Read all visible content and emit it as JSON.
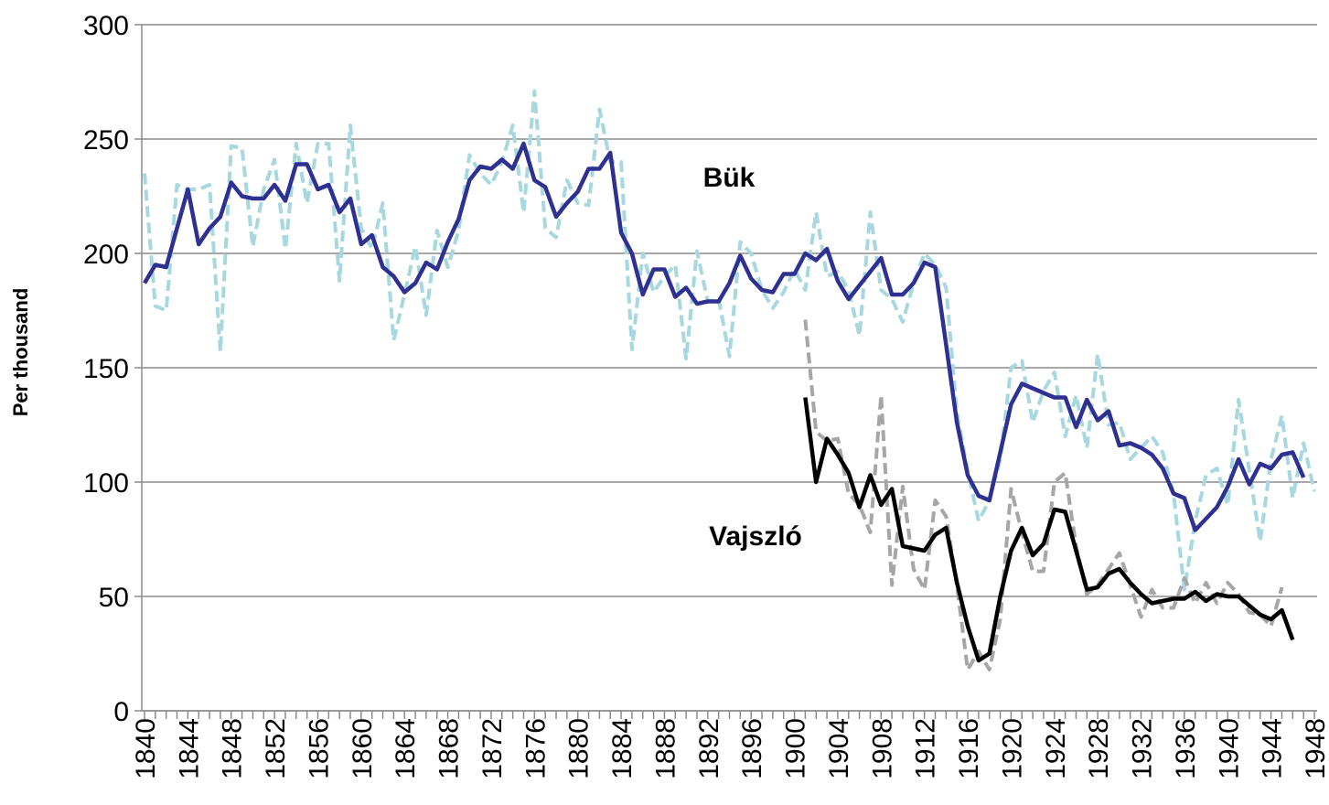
{
  "chart_data": {
    "type": "line",
    "y_label": "Per thousand",
    "annotations": [
      "Bük",
      "Vajszló"
    ],
    "x": [
      1840,
      1841,
      1842,
      1843,
      1844,
      1845,
      1846,
      1847,
      1848,
      1849,
      1850,
      1851,
      1852,
      1853,
      1854,
      1855,
      1856,
      1857,
      1858,
      1859,
      1860,
      1861,
      1862,
      1863,
      1864,
      1865,
      1866,
      1867,
      1868,
      1869,
      1870,
      1871,
      1872,
      1873,
      1874,
      1875,
      1876,
      1877,
      1878,
      1879,
      1880,
      1881,
      1882,
      1883,
      1884,
      1885,
      1886,
      1887,
      1888,
      1889,
      1890,
      1891,
      1892,
      1893,
      1894,
      1895,
      1896,
      1897,
      1898,
      1899,
      1900,
      1901,
      1902,
      1903,
      1904,
      1905,
      1906,
      1907,
      1908,
      1909,
      1910,
      1911,
      1912,
      1913,
      1914,
      1915,
      1916,
      1917,
      1918,
      1919,
      1920,
      1921,
      1922,
      1923,
      1924,
      1925,
      1926,
      1927,
      1928,
      1929,
      1930,
      1931,
      1932,
      1933,
      1934,
      1935,
      1936,
      1937,
      1938,
      1939,
      1940,
      1941,
      1942,
      1943,
      1944,
      1945,
      1946,
      1947,
      1948
    ],
    "xlim": [
      1840,
      1948
    ],
    "xticks": [
      1840,
      1844,
      1848,
      1852,
      1856,
      1860,
      1864,
      1868,
      1872,
      1876,
      1880,
      1884,
      1888,
      1892,
      1896,
      1900,
      1904,
      1908,
      1912,
      1916,
      1920,
      1924,
      1928,
      1932,
      1936,
      1940,
      1944,
      1948
    ],
    "ylim": [
      0,
      300
    ],
    "yticks": [
      0,
      50,
      100,
      150,
      200,
      250,
      300
    ],
    "grid": true,
    "series": [
      {
        "color": "#a8d8df",
        "dashed": true,
        "values": [
          235,
          177,
          175,
          230,
          228,
          228,
          230,
          157,
          247,
          246,
          203,
          228,
          241,
          202,
          248,
          222,
          248,
          248,
          188,
          256,
          211,
          202,
          222,
          162,
          182,
          203,
          173,
          210,
          194,
          210,
          243,
          235,
          230,
          240,
          256,
          218,
          271,
          211,
          207,
          232,
          222,
          221,
          263,
          240,
          240,
          158,
          200,
          183,
          190,
          195,
          154,
          201,
          179,
          180,
          155,
          205,
          200,
          184,
          176,
          183,
          193,
          184,
          218,
          190,
          192,
          184,
          164,
          218,
          184,
          180,
          170,
          187,
          200,
          195,
          185,
          130,
          105,
          83,
          92,
          110,
          150,
          153,
          126,
          140,
          148,
          120,
          138,
          115,
          156,
          125,
          126,
          110,
          115,
          120,
          113,
          95,
          53,
          83,
          103,
          106,
          90,
          136,
          105,
          74,
          110,
          129,
          93,
          117,
          96
        ]
      },
      {
        "color": "#a6a6a6",
        "dashed": true,
        "values": [
          null,
          null,
          null,
          null,
          null,
          null,
          null,
          null,
          null,
          null,
          null,
          null,
          null,
          null,
          null,
          null,
          null,
          null,
          null,
          null,
          null,
          null,
          null,
          null,
          null,
          null,
          null,
          null,
          null,
          null,
          null,
          null,
          null,
          null,
          null,
          null,
          null,
          null,
          null,
          null,
          null,
          null,
          null,
          null,
          null,
          null,
          null,
          null,
          null,
          null,
          null,
          null,
          null,
          null,
          null,
          null,
          null,
          null,
          null,
          null,
          null,
          171,
          122,
          118,
          119,
          95,
          90,
          78,
          138,
          55,
          98,
          62,
          53,
          92,
          85,
          55,
          18,
          26,
          18,
          40,
          97,
          78,
          61,
          61,
          100,
          104,
          72,
          51,
          55,
          62,
          69,
          55,
          41,
          53,
          45,
          45,
          58,
          47,
          56,
          47,
          56,
          51,
          43,
          42,
          37,
          54,
          null,
          null,
          null
        ]
      },
      {
        "color": "#2e3192",
        "dashed": false,
        "values": [
          187,
          195,
          194,
          211,
          228,
          204,
          211,
          216,
          231,
          225,
          224,
          224,
          230,
          223,
          239,
          239,
          228,
          230,
          218,
          224,
          204,
          208,
          194,
          190,
          183,
          187,
          196,
          193,
          205,
          215,
          232,
          238,
          237,
          241,
          237,
          248,
          232,
          229,
          216,
          222,
          227,
          237,
          237,
          244,
          209,
          200,
          182,
          193,
          193,
          181,
          185,
          178,
          179,
          179,
          187,
          199,
          189,
          184,
          183,
          191,
          191,
          200,
          197,
          202,
          188,
          180,
          186,
          192,
          198,
          182,
          182,
          187,
          196,
          194,
          160,
          126,
          103,
          94,
          92,
          113,
          134,
          143,
          141,
          139,
          137,
          137,
          124,
          136,
          127,
          131,
          116,
          117,
          115,
          112,
          106,
          95,
          93,
          79,
          84,
          89,
          98,
          110,
          99,
          108,
          106,
          112,
          113,
          102,
          null
        ]
      },
      {
        "color": "#000000",
        "dashed": false,
        "values": [
          null,
          null,
          null,
          null,
          null,
          null,
          null,
          null,
          null,
          null,
          null,
          null,
          null,
          null,
          null,
          null,
          null,
          null,
          null,
          null,
          null,
          null,
          null,
          null,
          null,
          null,
          null,
          null,
          null,
          null,
          null,
          null,
          null,
          null,
          null,
          null,
          null,
          null,
          null,
          null,
          null,
          null,
          null,
          null,
          null,
          null,
          null,
          null,
          null,
          null,
          null,
          null,
          null,
          null,
          null,
          null,
          null,
          null,
          null,
          null,
          null,
          137,
          100,
          119,
          112,
          104,
          89,
          103,
          90,
          97,
          72,
          71,
          70,
          77,
          80,
          56,
          37,
          22,
          25,
          50,
          70,
          80,
          68,
          73,
          88,
          87,
          70,
          53,
          54,
          60,
          62,
          56,
          51,
          47,
          48,
          49,
          49,
          52,
          48,
          51,
          50,
          50,
          46,
          42,
          40,
          44,
          31,
          null,
          null
        ]
      }
    ]
  }
}
